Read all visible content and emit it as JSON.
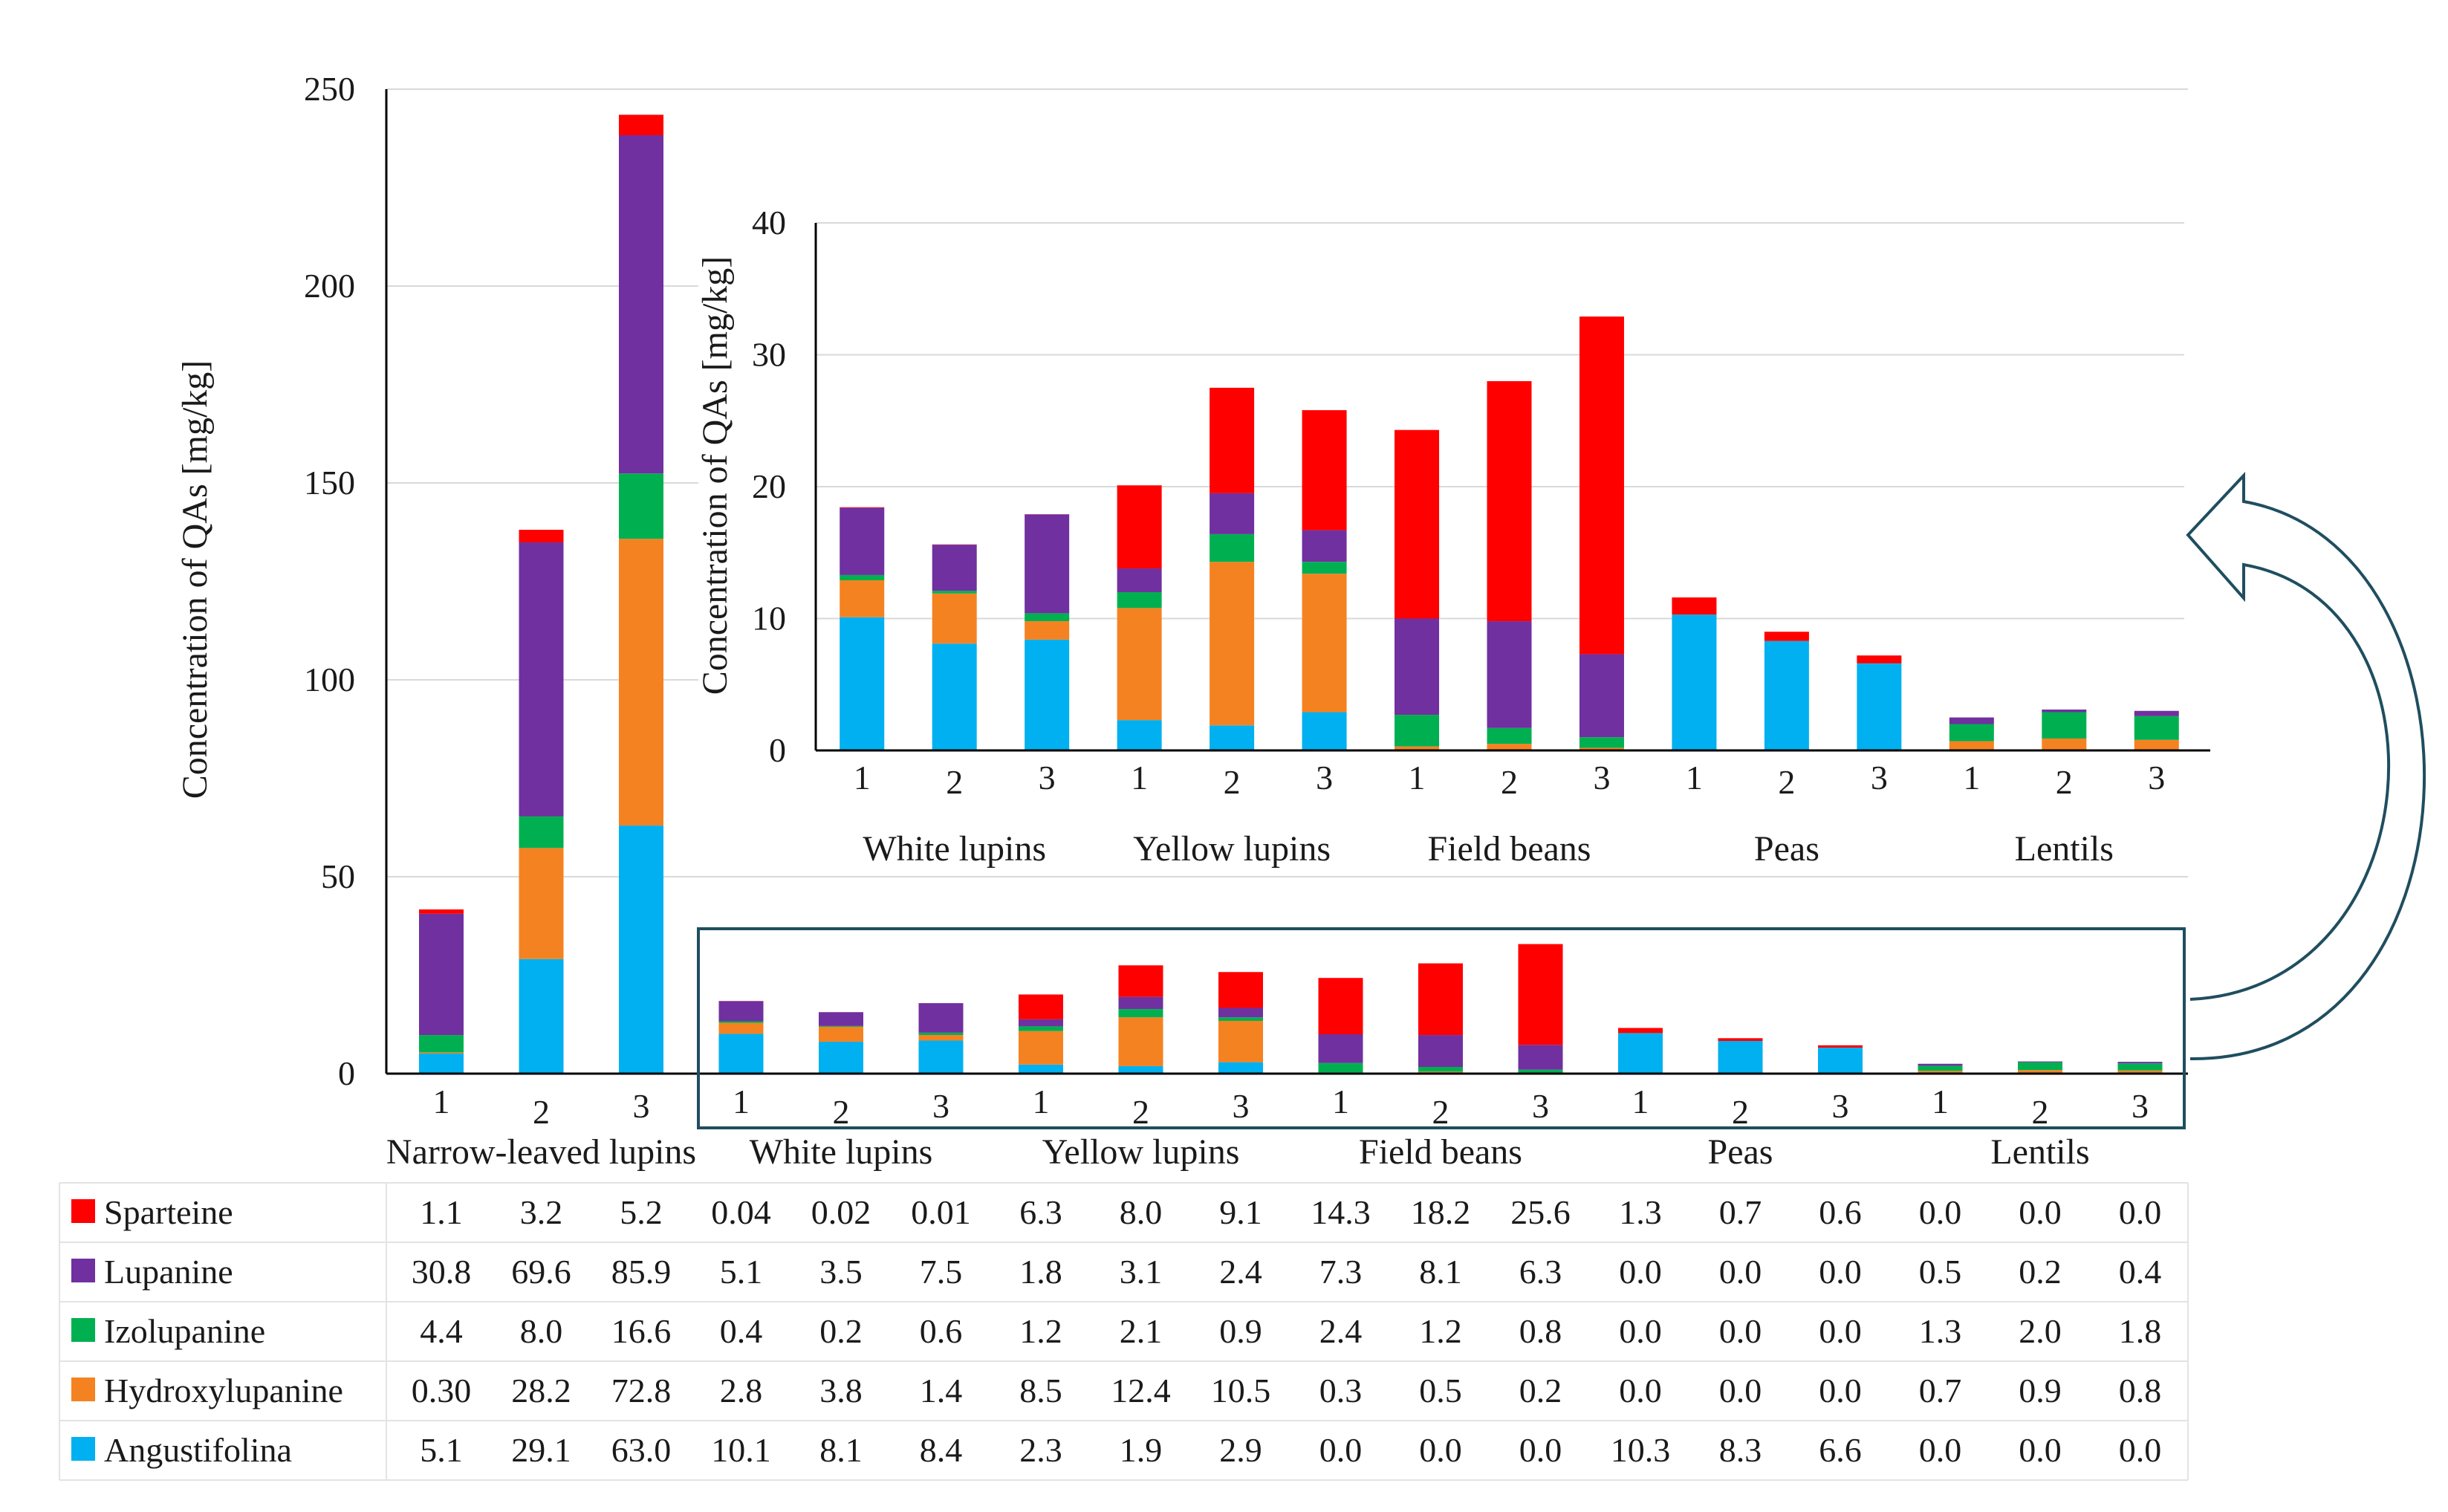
{
  "chart_data": {
    "type": "bar",
    "stacked": true,
    "ylabel": "Concentration of QAs [mg/kg]",
    "main_ylim": [
      0,
      250
    ],
    "main_yticks": [
      0,
      50,
      100,
      150,
      200,
      250
    ],
    "inset_ylabel": "Concentration of QAs [mg/kg]",
    "inset_ylim": [
      0,
      40
    ],
    "inset_yticks": [
      0,
      10,
      20,
      30,
      40
    ],
    "groups": [
      "Narrow-leaved lupins",
      "White lupins",
      "Yellow lupins",
      "Field beans",
      "Peas",
      "Lentils"
    ],
    "samples": [
      "1",
      "2",
      "3",
      "1",
      "2",
      "3",
      "1",
      "2",
      "3",
      "1",
      "2",
      "3",
      "1",
      "2",
      "3",
      "1",
      "2",
      "3"
    ],
    "inset_group_start": 1,
    "series": [
      {
        "name": "Sparteine",
        "color": "#ff0000",
        "values": [
          1.1,
          3.2,
          5.2,
          0.04,
          0.02,
          0.01,
          6.3,
          8.0,
          9.1,
          14.3,
          18.2,
          25.6,
          1.3,
          0.7,
          0.6,
          0.0,
          0.0,
          0.0
        ],
        "labels": [
          "1.1",
          "3.2",
          "5.2",
          "0.04",
          "0.02",
          "0.01",
          "6.3",
          "8.0",
          "9.1",
          "14.3",
          "18.2",
          "25.6",
          "1.3",
          "0.7",
          "0.6",
          "0.0",
          "0.0",
          "0.0"
        ]
      },
      {
        "name": "Lupanine",
        "color": "#7030a0",
        "values": [
          30.8,
          69.6,
          85.9,
          5.1,
          3.5,
          7.5,
          1.8,
          3.1,
          2.4,
          7.3,
          8.1,
          6.3,
          0.0,
          0.0,
          0.0,
          0.5,
          0.2,
          0.4
        ],
        "labels": [
          "30.8",
          "69.6",
          "85.9",
          "5.1",
          "3.5",
          "7.5",
          "1.8",
          "3.1",
          "2.4",
          "7.3",
          "8.1",
          "6.3",
          "0.0",
          "0.0",
          "0.0",
          "0.5",
          "0.2",
          "0.4"
        ]
      },
      {
        "name": "Izolupanine",
        "color": "#00b050",
        "values": [
          4.4,
          8.0,
          16.6,
          0.4,
          0.2,
          0.6,
          1.2,
          2.1,
          0.9,
          2.4,
          1.2,
          0.8,
          0.0,
          0.0,
          0.0,
          1.3,
          2.0,
          1.8
        ],
        "labels": [
          "4.4",
          "8.0",
          "16.6",
          "0.4",
          "0.2",
          "0.6",
          "1.2",
          "2.1",
          "0.9",
          "2.4",
          "1.2",
          "0.8",
          "0.0",
          "0.0",
          "0.0",
          "1.3",
          "2.0",
          "1.8"
        ]
      },
      {
        "name": "Hydroxylupanine",
        "color": "#f58220",
        "values": [
          0.3,
          28.2,
          72.8,
          2.8,
          3.8,
          1.4,
          8.5,
          12.4,
          10.5,
          0.3,
          0.5,
          0.2,
          0.0,
          0.0,
          0.0,
          0.7,
          0.9,
          0.8
        ],
        "labels": [
          "0.30",
          "28.2",
          "72.8",
          "2.8",
          "3.8",
          "1.4",
          "8.5",
          "12.4",
          "10.5",
          "0.3",
          "0.5",
          "0.2",
          "0.0",
          "0.0",
          "0.0",
          "0.7",
          "0.9",
          "0.8"
        ]
      },
      {
        "name": "Angustifolina",
        "color": "#00b0f0",
        "values": [
          5.1,
          29.1,
          63.0,
          10.1,
          8.1,
          8.4,
          2.3,
          1.9,
          2.9,
          0.0,
          0.0,
          0.0,
          10.3,
          8.3,
          6.6,
          0.0,
          0.0,
          0.0
        ],
        "labels": [
          "5.1",
          "29.1",
          "63.0",
          "10.1",
          "8.1",
          "8.4",
          "2.3",
          "1.9",
          "2.9",
          "0.0",
          "0.0",
          "0.0",
          "10.3",
          "8.3",
          "6.6",
          "0.0",
          "0.0",
          "0.0"
        ]
      }
    ],
    "stack_order_bottom_to_top": [
      "Angustifolina",
      "Hydroxylupanine",
      "Izolupanine",
      "Lupanine",
      "Sparteine"
    ],
    "table_row_order": [
      "Sparteine",
      "Lupanine",
      "Izolupanine",
      "Hydroxylupanine",
      "Angustifolina"
    ],
    "annotation": "Inset magnifies the boxed region (White lupins to Lentils)"
  }
}
